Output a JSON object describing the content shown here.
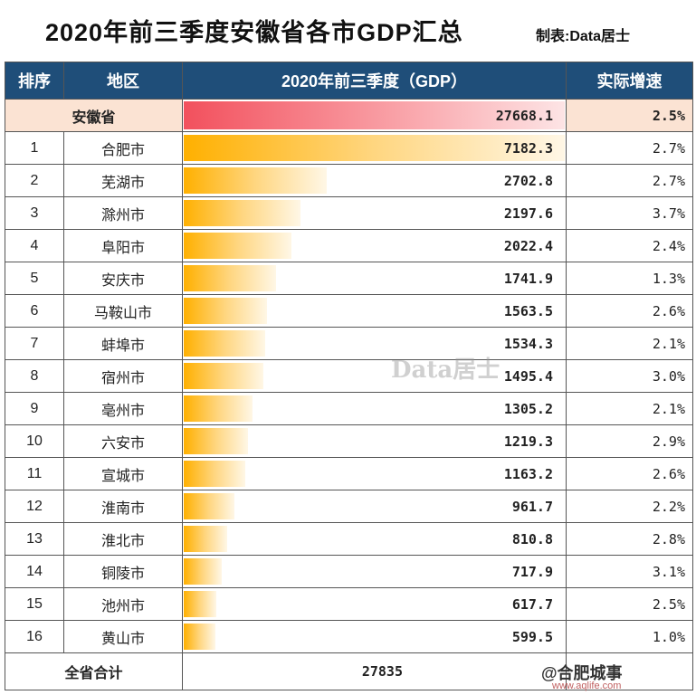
{
  "title": "2020年前三季度安徽省各市GDP汇总",
  "maker": "制表:Data居士",
  "headers": {
    "rank": "排序",
    "region": "地区",
    "gdp": "2020年前三季度（GDP）",
    "speed": "实际增速"
  },
  "province": {
    "name": "安徽省",
    "gdp": "27668.1",
    "speed": "2.5%"
  },
  "total": {
    "label": "全省合计",
    "gdp": "27835"
  },
  "watermark": "Data居士",
  "footer": {
    "brand": "@合肥城事",
    "site": "www.aqlife.com"
  },
  "chart_data": {
    "type": "bar",
    "categories": [
      "合肥市",
      "芜湖市",
      "滁州市",
      "阜阳市",
      "安庆市",
      "马鞍山市",
      "蚌埠市",
      "宿州市",
      "亳州市",
      "六安市",
      "宣城市",
      "淮南市",
      "淮北市",
      "铜陵市",
      "池州市",
      "黄山市"
    ],
    "values": [
      7182.3,
      2702.8,
      2197.6,
      2022.4,
      1741.9,
      1563.5,
      1534.3,
      1495.4,
      1305.2,
      1219.3,
      1163.2,
      961.7,
      810.8,
      717.9,
      617.7,
      599.5
    ],
    "growth": [
      "2.7%",
      "2.7%",
      "3.7%",
      "2.4%",
      "1.3%",
      "2.6%",
      "2.1%",
      "3.0%",
      "2.1%",
      "2.9%",
      "2.6%",
      "2.2%",
      "2.8%",
      "3.1%",
      "2.5%",
      "1.0%"
    ],
    "ranks": [
      "1",
      "2",
      "3",
      "4",
      "5",
      "6",
      "7",
      "8",
      "9",
      "10",
      "11",
      "12",
      "13",
      "14",
      "15",
      "16"
    ],
    "province_value": 27668.1
  }
}
